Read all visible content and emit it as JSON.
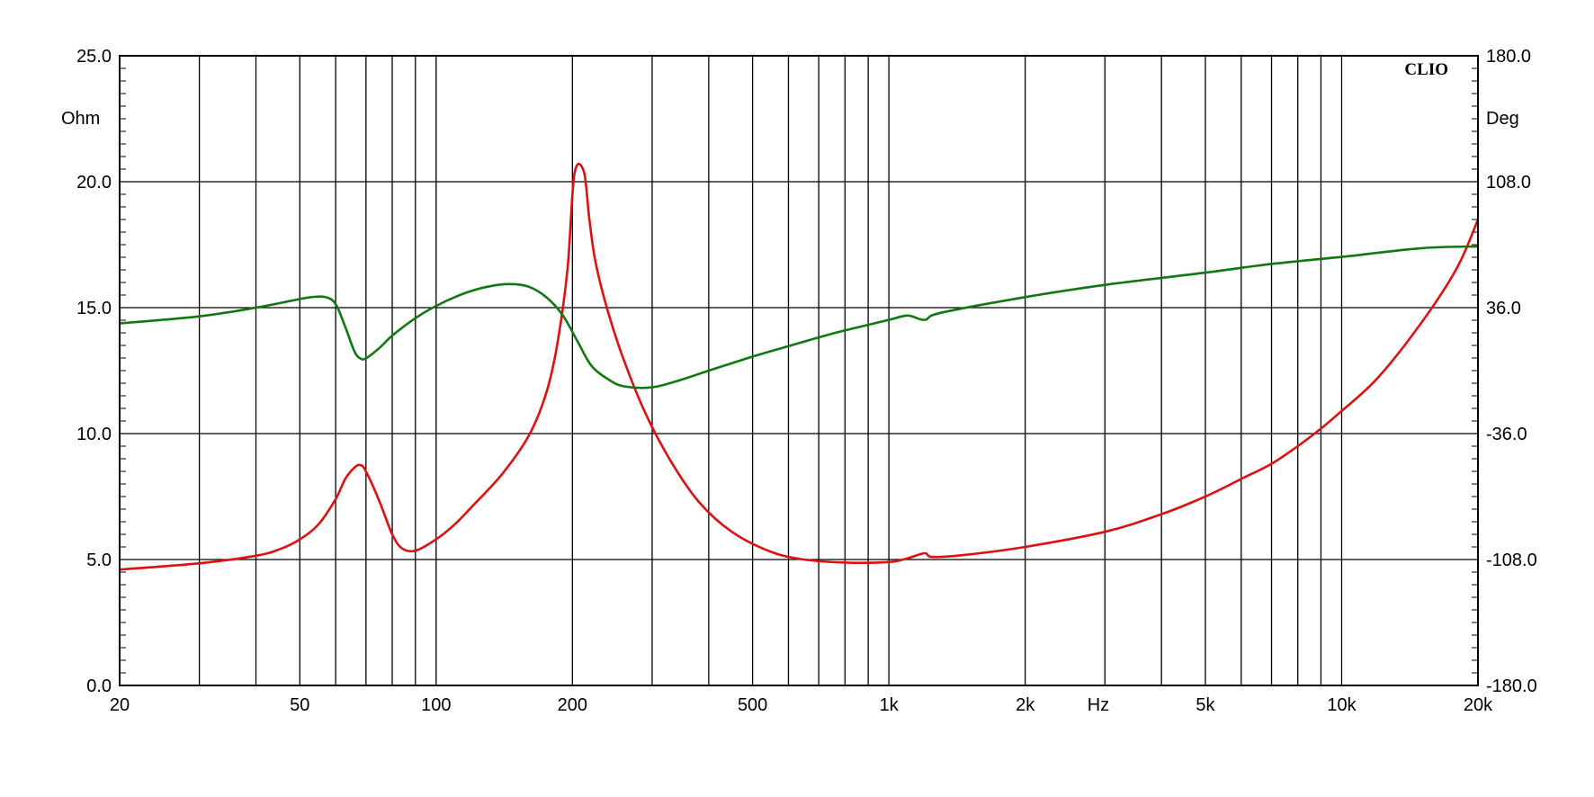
{
  "chart_data": {
    "type": "line",
    "brand": "CLIO",
    "x_scale": "log",
    "xlim": [
      20,
      20000
    ],
    "y_left": {
      "unit": "Ohm",
      "range": [
        0,
        25
      ],
      "ticks": [
        "0.0",
        "5.0",
        "10.0",
        "15.0",
        "20.0",
        "25.0"
      ]
    },
    "y_right": {
      "unit": "Deg",
      "range": [
        -180,
        180
      ],
      "ticks": [
        "-180.0",
        "-108.0",
        "-36.0",
        "36.0",
        "108.0",
        "180.0"
      ]
    },
    "x_unit": "Hz",
    "x_tick_labels": [
      {
        "value": 20,
        "label": "20"
      },
      {
        "value": 50,
        "label": "50"
      },
      {
        "value": 100,
        "label": "100"
      },
      {
        "value": 200,
        "label": "200"
      },
      {
        "value": 500,
        "label": "500"
      },
      {
        "value": 1000,
        "label": "1k"
      },
      {
        "value": 2000,
        "label": "2k"
      },
      {
        "value": 5000,
        "label": "5k"
      },
      {
        "value": 10000,
        "label": "10k"
      },
      {
        "value": 20000,
        "label": "20k"
      }
    ],
    "x_gridlines": [
      30,
      40,
      50,
      60,
      70,
      80,
      90,
      100,
      200,
      300,
      400,
      500,
      600,
      700,
      800,
      900,
      1000,
      2000,
      3000,
      4000,
      5000,
      6000,
      7000,
      8000,
      9000,
      10000
    ],
    "y_gridlines": [
      5,
      10,
      15,
      20
    ],
    "grid": true,
    "colors": {
      "impedance": "#dd1111",
      "phase": "#117711",
      "grid": "#000000"
    },
    "series": [
      {
        "axis": "left",
        "color": "#dd1111",
        "points": [
          [
            20,
            4.6
          ],
          [
            30,
            4.85
          ],
          [
            40,
            5.15
          ],
          [
            45,
            5.4
          ],
          [
            50,
            5.8
          ],
          [
            55,
            6.4
          ],
          [
            60,
            7.4
          ],
          [
            63,
            8.2
          ],
          [
            66,
            8.65
          ],
          [
            68,
            8.75
          ],
          [
            70,
            8.5
          ],
          [
            75,
            7.3
          ],
          [
            80,
            6.0
          ],
          [
            84,
            5.45
          ],
          [
            90,
            5.35
          ],
          [
            100,
            5.8
          ],
          [
            110,
            6.4
          ],
          [
            120,
            7.1
          ],
          [
            140,
            8.4
          ],
          [
            160,
            9.9
          ],
          [
            175,
            11.6
          ],
          [
            185,
            13.5
          ],
          [
            195,
            16.5
          ],
          [
            202,
            20.3
          ],
          [
            212,
            20.4
          ],
          [
            218,
            18.5
          ],
          [
            225,
            16.8
          ],
          [
            240,
            14.8
          ],
          [
            260,
            12.9
          ],
          [
            290,
            10.8
          ],
          [
            330,
            8.9
          ],
          [
            380,
            7.3
          ],
          [
            450,
            6.1
          ],
          [
            550,
            5.3
          ],
          [
            650,
            5.0
          ],
          [
            800,
            4.88
          ],
          [
            1000,
            4.9
          ],
          [
            1100,
            5.05
          ],
          [
            1200,
            5.25
          ],
          [
            1250,
            5.1
          ],
          [
            1500,
            5.2
          ],
          [
            2000,
            5.5
          ],
          [
            3000,
            6.1
          ],
          [
            4000,
            6.8
          ],
          [
            5000,
            7.5
          ],
          [
            6000,
            8.2
          ],
          [
            7000,
            8.8
          ],
          [
            8000,
            9.5
          ],
          [
            9000,
            10.2
          ],
          [
            10000,
            10.9
          ],
          [
            12000,
            12.2
          ],
          [
            15000,
            14.4
          ],
          [
            18000,
            16.6
          ],
          [
            20000,
            18.5
          ]
        ]
      },
      {
        "axis": "right",
        "color": "#117711",
        "points": [
          [
            20,
            27
          ],
          [
            30,
            31
          ],
          [
            40,
            36
          ],
          [
            48,
            40
          ],
          [
            53,
            42
          ],
          [
            57,
            42
          ],
          [
            60,
            38
          ],
          [
            63,
            25
          ],
          [
            66,
            11
          ],
          [
            68,
            7
          ],
          [
            70,
            7
          ],
          [
            75,
            13
          ],
          [
            80,
            20
          ],
          [
            90,
            30
          ],
          [
            100,
            37
          ],
          [
            115,
            44
          ],
          [
            130,
            48
          ],
          [
            145,
            49.5
          ],
          [
            160,
            48
          ],
          [
            175,
            42
          ],
          [
            190,
            32
          ],
          [
            205,
            17
          ],
          [
            220,
            3
          ],
          [
            240,
            -5
          ],
          [
            260,
            -9
          ],
          [
            300,
            -9.5
          ],
          [
            350,
            -5
          ],
          [
            400,
            0
          ],
          [
            500,
            8
          ],
          [
            600,
            14
          ],
          [
            700,
            19
          ],
          [
            800,
            23
          ],
          [
            1000,
            29
          ],
          [
            1100,
            31.5
          ],
          [
            1200,
            29
          ],
          [
            1300,
            33
          ],
          [
            2000,
            42
          ],
          [
            3000,
            49
          ],
          [
            5000,
            56
          ],
          [
            7000,
            61
          ],
          [
            10000,
            65
          ],
          [
            15000,
            70
          ],
          [
            20000,
            71
          ]
        ]
      }
    ]
  }
}
